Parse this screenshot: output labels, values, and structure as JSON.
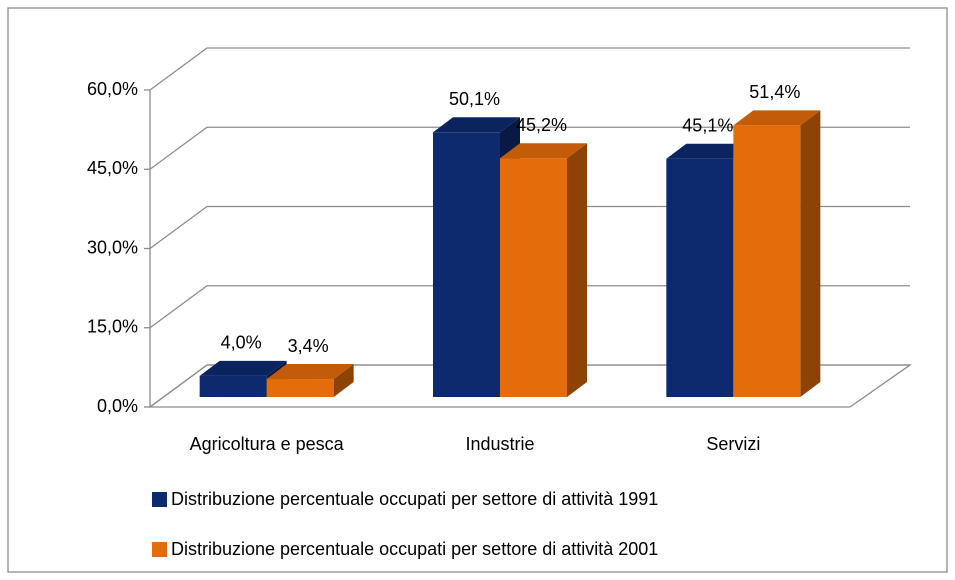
{
  "chart_data": {
    "type": "bar",
    "categories": [
      "Agricoltura e pesca",
      "Industrie",
      "Servizi"
    ],
    "series": [
      {
        "name": "Distribuzione percentuale occupati per settore di attività 1991",
        "color": "#0d2a6e",
        "values": [
          4.0,
          50.1,
          45.1
        ],
        "value_labels": [
          "4,0%",
          "50,1%",
          "45,1%"
        ]
      },
      {
        "name": "Distribuzione percentuale occupati per settore di attività 2001",
        "color": "#e46c0a",
        "values": [
          3.4,
          45.2,
          51.4
        ],
        "value_labels": [
          "3,4%",
          "45,2%",
          "51,4%"
        ]
      }
    ],
    "ylim": [
      0,
      60
    ],
    "yticks": [
      {
        "value": 0,
        "label": "0,0%"
      },
      {
        "value": 15,
        "label": "15,0%"
      },
      {
        "value": 30,
        "label": "30,0%"
      },
      {
        "value": 45,
        "label": "45,0%"
      },
      {
        "value": 60,
        "label": "60,0%"
      }
    ],
    "grid": true,
    "legend": "bottom"
  }
}
